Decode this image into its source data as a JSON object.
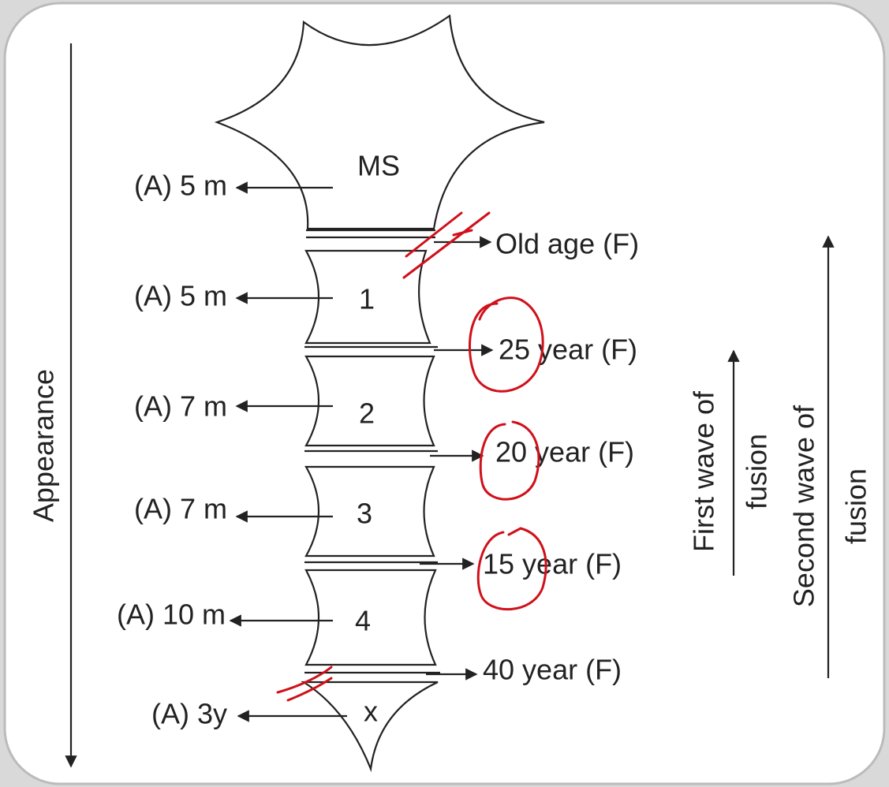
{
  "axis_label": "Appearance",
  "segments": [
    {
      "label": "MS",
      "appearance": "(A) 5 m"
    },
    {
      "label": "1",
      "appearance": "(A) 5 m"
    },
    {
      "label": "2",
      "appearance": "(A) 7 m"
    },
    {
      "label": "3",
      "appearance": "(A) 7 m"
    },
    {
      "label": "4",
      "appearance": "(A) 10 m"
    },
    {
      "label": "x",
      "appearance": "(A) 3y"
    }
  ],
  "fusions": [
    "Old age (F)",
    "25 year (F)",
    "20 year (F)",
    "15 year (F)",
    "40 year (F)"
  ],
  "first_wave": [
    "First wave of",
    "fusion"
  ],
  "second_wave": [
    "Second wave of",
    "fusion"
  ]
}
